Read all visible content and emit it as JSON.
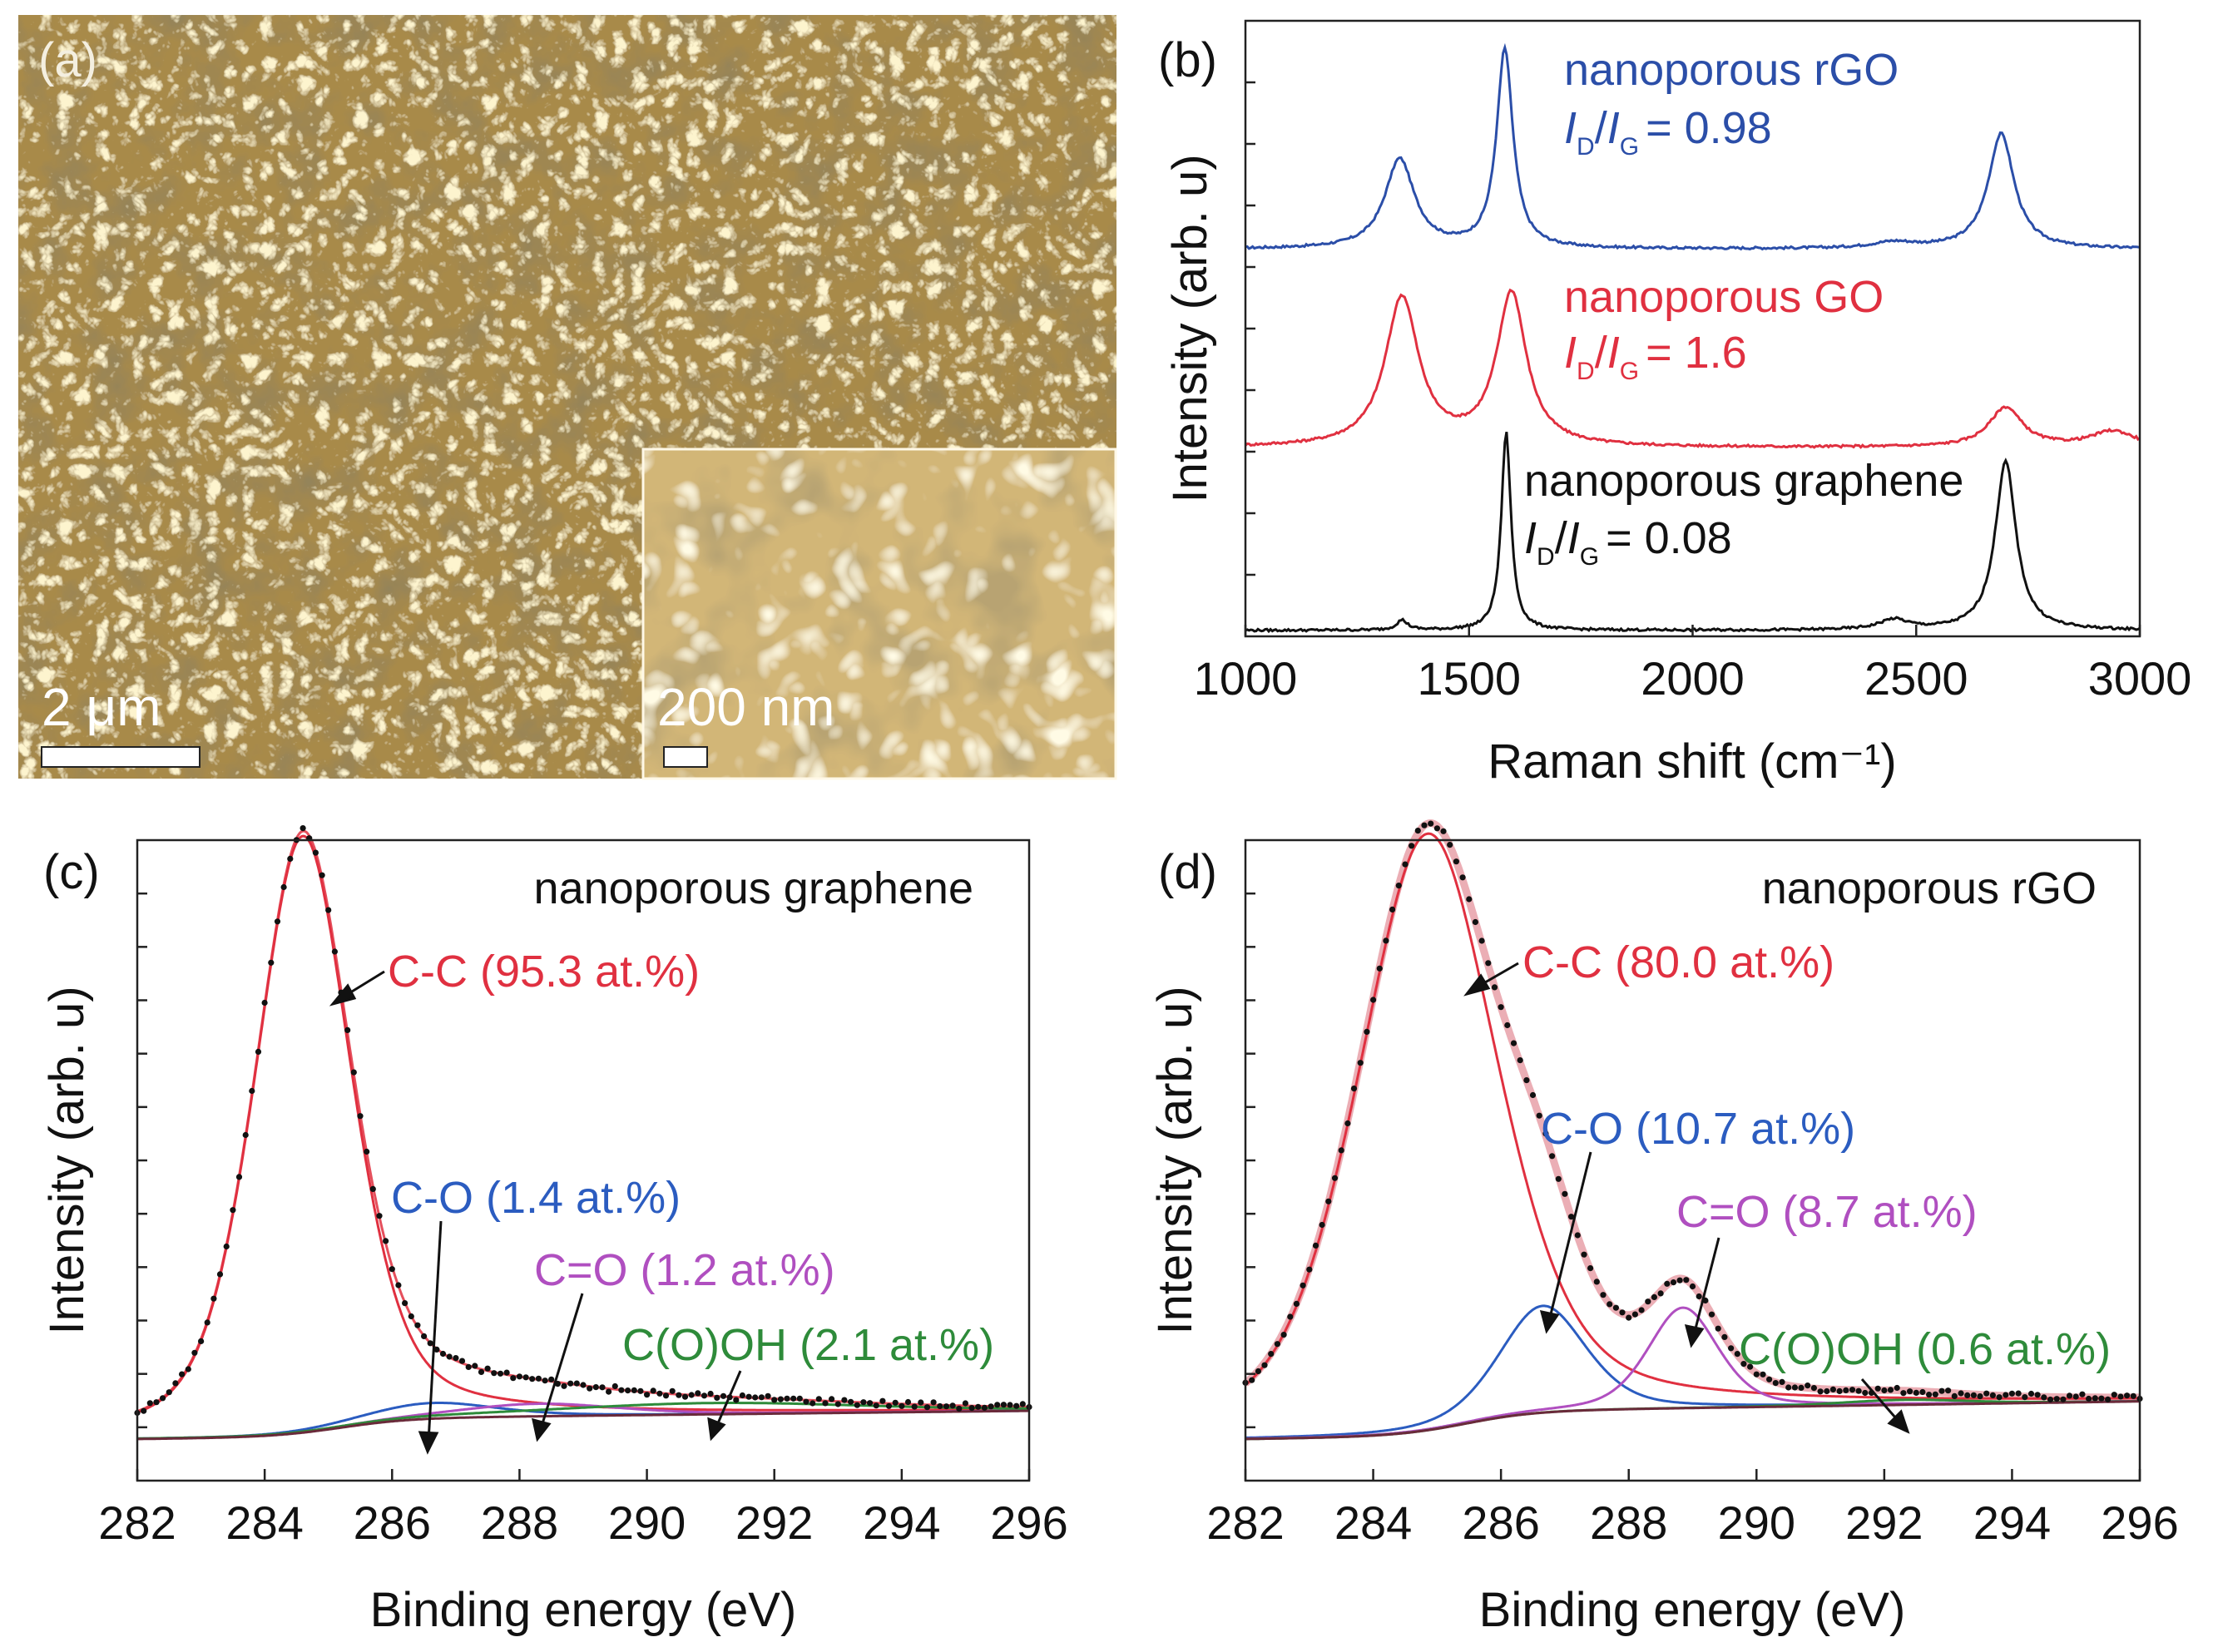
{
  "figure": {
    "panel_a": {
      "letter": "(a)",
      "scale_bar": "2 μm",
      "inset_scale_bar": "200 nm",
      "colors": {
        "base": "#a88a4a",
        "dark": "#4a3a1c",
        "light": "#f5e3a6",
        "inset_base": "#d2b677"
      }
    }
  },
  "chart_data": [
    {
      "panel": "(b)",
      "type": "line",
      "title": "",
      "xlabel": "Raman shift (cm⁻¹)",
      "ylabel": "Intensity (arb. u)",
      "xlim": [
        1000,
        3000
      ],
      "xticks": [
        1000,
        1500,
        2000,
        2500,
        3000
      ],
      "ylim": [
        0,
        3.1
      ],
      "series": [
        {
          "name": "nanoporous rGO",
          "ratio_text": "= 0.98",
          "color": "#2b4ea8",
          "offset": 1.95,
          "peaks": [
            {
              "center": 1345,
              "height": 0.45,
              "width": 40
            },
            {
              "center": 1580,
              "height": 1.0,
              "width": 22
            },
            {
              "center": 2450,
              "height": 0.03,
              "width": 60
            },
            {
              "center": 2690,
              "height": 0.58,
              "width": 35
            }
          ]
        },
        {
          "name": "nanoporous GO",
          "ratio_text": "= 1.6",
          "color": "#e03040",
          "offset": 0.95,
          "peaks": [
            {
              "center": 1350,
              "height": 0.75,
              "width": 45
            },
            {
              "center": 1595,
              "height": 0.77,
              "width": 40
            },
            {
              "center": 2700,
              "height": 0.2,
              "width": 45
            },
            {
              "center": 2940,
              "height": 0.08,
              "width": 60
            }
          ]
        },
        {
          "name": "nanoporous graphene",
          "ratio_text": "= 0.08",
          "color": "#111111",
          "offset": 0.03,
          "peaks": [
            {
              "center": 1350,
              "height": 0.05,
              "width": 15
            },
            {
              "center": 1583,
              "height": 1.0,
              "width": 13
            },
            {
              "center": 2450,
              "height": 0.05,
              "width": 40
            },
            {
              "center": 2700,
              "height": 0.85,
              "width": 28
            }
          ]
        }
      ]
    },
    {
      "panel": "(c)",
      "type": "line",
      "title": "nanoporous graphene",
      "xlabel": "Binding energy (eV)",
      "ylabel": "Intensity (arb. u)",
      "xlim": [
        282,
        296
      ],
      "xticks": [
        282,
        284,
        286,
        288,
        290,
        292,
        294,
        296
      ],
      "ylim": [
        0,
        1.02
      ],
      "components": [
        {
          "label": "C-C (95.3 at.%)",
          "center": 284.6,
          "height": 0.95,
          "width": 0.9,
          "color": "#e03040"
        },
        {
          "label": "C-O (1.4 at.%)",
          "center": 286.6,
          "height": 0.025,
          "width": 1.2,
          "color": "#2b5cc0"
        },
        {
          "label": "C=O (1.2 at.%)",
          "center": 288.3,
          "height": 0.02,
          "width": 1.5,
          "color": "#b04fc0"
        },
        {
          "label": "C(O)OH (2.1 at.%)",
          "center": 291.0,
          "height": 0.018,
          "width": 3.0,
          "color": "#2e8b3a"
        }
      ],
      "background": {
        "start": 0.0,
        "end": 0.045
      },
      "envelope_color": "#e03040",
      "dots_color": "#111111"
    },
    {
      "panel": "(d)",
      "type": "line",
      "title": "nanoporous rGO",
      "xlabel": "Binding energy (eV)",
      "ylabel": "Intensity (arb. u)",
      "xlim": [
        282,
        296
      ],
      "xticks": [
        282,
        284,
        286,
        288,
        290,
        292,
        294,
        296
      ],
      "ylim": [
        0,
        1.02
      ],
      "components": [
        {
          "label": "C-C (80.0 at.%)",
          "center": 284.85,
          "height": 0.95,
          "width": 1.3,
          "color": "#e03040"
        },
        {
          "label": "C-O (10.7 at.%)",
          "center": 286.65,
          "height": 0.17,
          "width": 0.8,
          "color": "#2b5cc0"
        },
        {
          "label": "C=O (8.7 at.%)",
          "center": 288.85,
          "height": 0.16,
          "width": 0.65,
          "color": "#b04fc0"
        },
        {
          "label": "C(O)OH (0.6 at.%)",
          "center": 292.3,
          "height": 0.008,
          "width": 1.2,
          "color": "#2e8b3a"
        }
      ],
      "background": {
        "start": 0.0,
        "end": 0.06
      },
      "envelope_color": "#e8a0a8",
      "dots_color": "#111111"
    }
  ]
}
